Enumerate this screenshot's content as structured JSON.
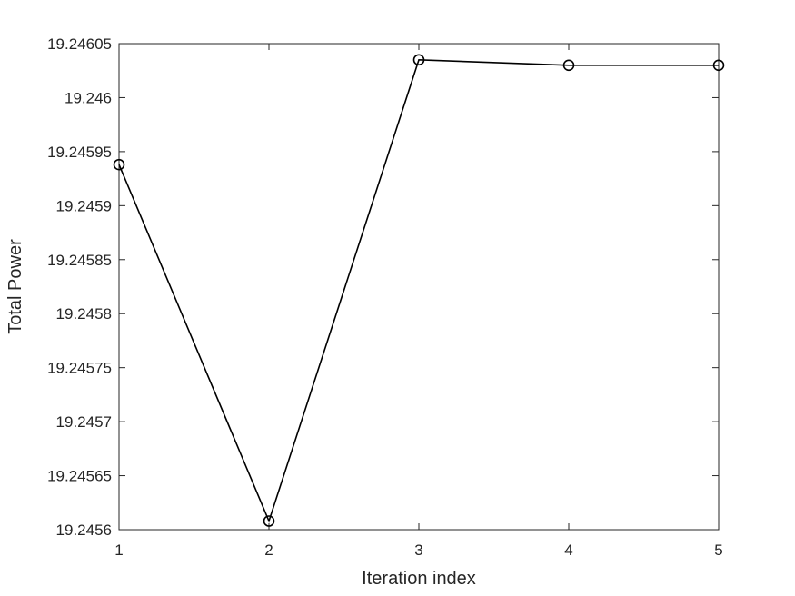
{
  "chart_data": {
    "type": "line",
    "title": "",
    "xlabel": "Iteration index",
    "ylabel": "Total Power",
    "x": [
      1,
      2,
      3,
      4,
      5
    ],
    "series": [
      {
        "values": [
          19.245938,
          19.245608,
          19.246035,
          19.24603,
          19.24603
        ],
        "marker": "circle",
        "color": "#000000"
      }
    ],
    "xlim": [
      1,
      5
    ],
    "ylim": [
      19.2456,
      19.24605
    ],
    "xticks": [
      "1",
      "2",
      "3",
      "4",
      "5"
    ],
    "yticks": [
      "19.2456",
      "19.24565",
      "19.2457",
      "19.24575",
      "19.2458",
      "19.24585",
      "19.2459",
      "19.24595",
      "19.246",
      "19.24605"
    ],
    "grid": false,
    "legend": "none"
  }
}
